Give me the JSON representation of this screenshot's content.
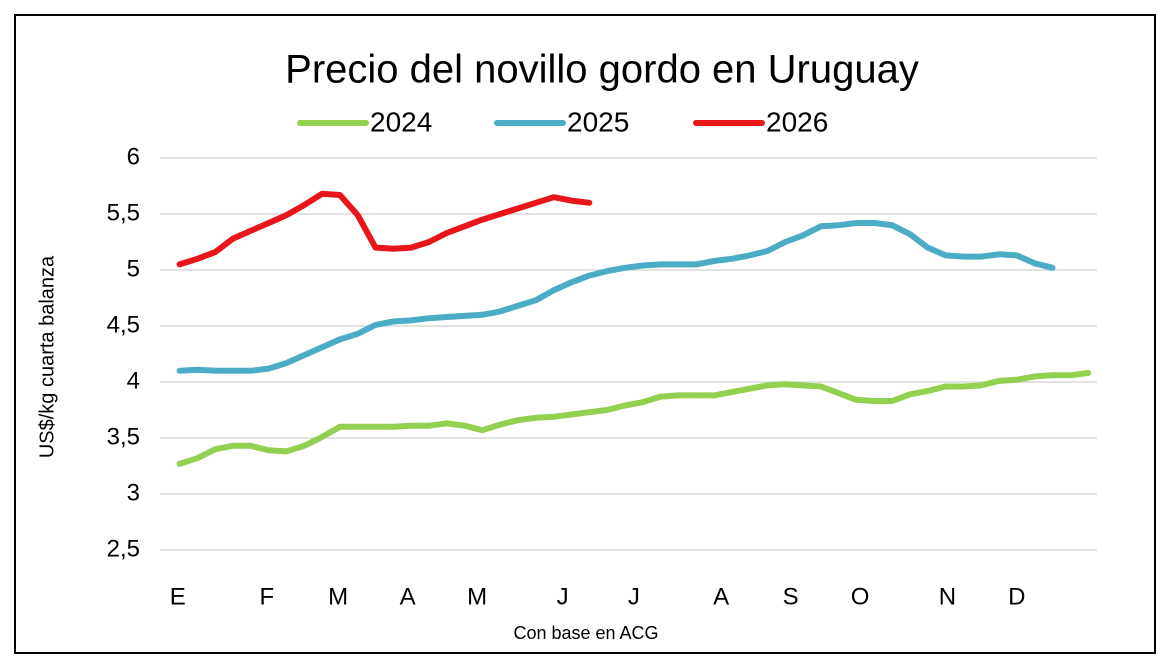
{
  "chart_data": {
    "type": "line",
    "title": "Precio del novillo gordo en Uruguay",
    "y_label": "US$/kg cuarta balanza",
    "x_label": "Con base en ACG",
    "x": [
      1,
      2,
      3,
      4,
      5,
      6,
      7,
      8,
      9,
      10,
      11,
      12,
      13,
      14,
      15,
      16,
      17,
      18,
      19,
      20,
      21,
      22,
      23,
      24,
      25,
      26,
      27,
      28,
      29,
      30,
      31,
      32,
      33,
      34,
      35,
      36,
      37,
      38,
      39,
      40,
      41,
      42,
      43,
      44,
      45,
      46,
      47,
      48,
      49,
      50,
      51,
      52
    ],
    "xlim": [
      -0.1,
      52.5
    ],
    "xticks": [
      {
        "value": 0.9,
        "label": "E"
      },
      {
        "value": 5.9,
        "label": "F"
      },
      {
        "value": 9.9,
        "label": "M"
      },
      {
        "value": 13.8,
        "label": "A"
      },
      {
        "value": 17.7,
        "label": "M"
      },
      {
        "value": 22.5,
        "label": "J"
      },
      {
        "value": 26.5,
        "label": "J"
      },
      {
        "value": 31.4,
        "label": "A"
      },
      {
        "value": 35.3,
        "label": "S"
      },
      {
        "value": 39.2,
        "label": "O"
      },
      {
        "value": 44.1,
        "label": "N"
      },
      {
        "value": 48.0,
        "label": "D"
      }
    ],
    "ylim": [
      2.5,
      6
    ],
    "yticks": [
      {
        "value": 2.5,
        "label": "2,5"
      },
      3,
      {
        "value": 3.5,
        "label": "3,5"
      },
      4,
      {
        "value": 4.5,
        "label": "4,5"
      },
      5,
      {
        "value": 5.5,
        "label": "5,5"
      },
      6
    ],
    "grid": true,
    "legend": "top",
    "series": [
      {
        "name": "2024",
        "color": "#92d050",
        "values": [
          3.27,
          3.32,
          3.4,
          3.43,
          3.43,
          3.39,
          3.38,
          3.43,
          3.51,
          3.6,
          3.6,
          3.6,
          3.6,
          3.61,
          3.61,
          3.63,
          3.61,
          3.57,
          3.62,
          3.66,
          3.68,
          3.69,
          3.71,
          3.73,
          3.75,
          3.79,
          3.82,
          3.87,
          3.88,
          3.88,
          3.88,
          3.91,
          3.94,
          3.97,
          3.98,
          3.97,
          3.96,
          3.9,
          3.84,
          3.83,
          3.83,
          3.89,
          3.92,
          3.96,
          3.96,
          3.97,
          4.01,
          4.02,
          4.05,
          4.06,
          4.06,
          4.08
        ]
      },
      {
        "name": "2025",
        "color": "#4bacc6",
        "values": [
          4.1,
          4.11,
          4.1,
          4.1,
          4.1,
          4.12,
          4.17,
          4.24,
          4.31,
          4.38,
          4.43,
          4.51,
          4.54,
          4.55,
          4.57,
          4.58,
          4.59,
          4.6,
          4.63,
          4.68,
          4.73,
          4.82,
          4.89,
          4.95,
          4.99,
          5.02,
          5.04,
          5.05,
          5.05,
          5.05,
          5.08,
          5.1,
          5.13,
          5.17,
          5.25,
          5.31,
          5.39,
          5.4,
          5.42,
          5.42,
          5.4,
          5.32,
          5.2,
          5.13,
          5.12,
          5.12,
          5.14,
          5.13,
          5.06,
          5.02,
          null,
          null
        ]
      },
      {
        "name": "2026",
        "color": "#e8161a",
        "values": [
          5.05,
          5.1,
          5.16,
          5.28,
          5.35,
          5.42,
          5.49,
          5.58,
          5.68,
          5.67,
          5.49,
          5.2,
          5.19,
          5.2,
          5.25,
          5.33,
          5.39,
          5.45,
          5.5,
          5.55,
          5.6,
          5.65,
          5.62,
          5.6,
          null,
          null,
          null,
          null,
          null,
          null,
          null,
          null,
          null,
          null,
          null,
          null,
          null,
          null,
          null,
          null,
          null,
          null,
          null,
          null,
          null,
          null,
          null,
          null,
          null,
          null,
          null,
          null
        ]
      }
    ]
  }
}
